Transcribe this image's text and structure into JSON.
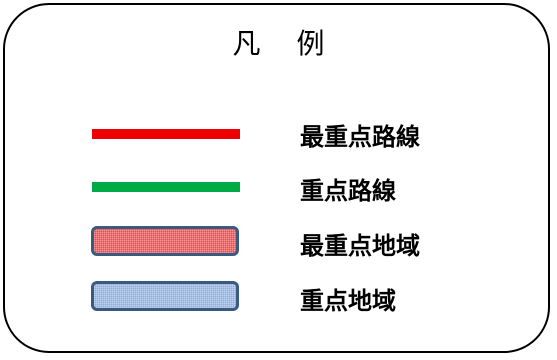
{
  "legend": {
    "title_chars": [
      "凡",
      "例"
    ],
    "items": [
      {
        "label": "最重点路線",
        "kind": "line",
        "color": "#ee0000"
      },
      {
        "label": "重点路線",
        "kind": "line",
        "color": "#00aa44"
      },
      {
        "label": "最重点地域",
        "kind": "area",
        "color": "#ee4a4a",
        "border_color": "#3b5a80"
      },
      {
        "label": "重点地域",
        "kind": "area",
        "color": "#8aaee0",
        "border_color": "#3b5a80"
      }
    ]
  }
}
